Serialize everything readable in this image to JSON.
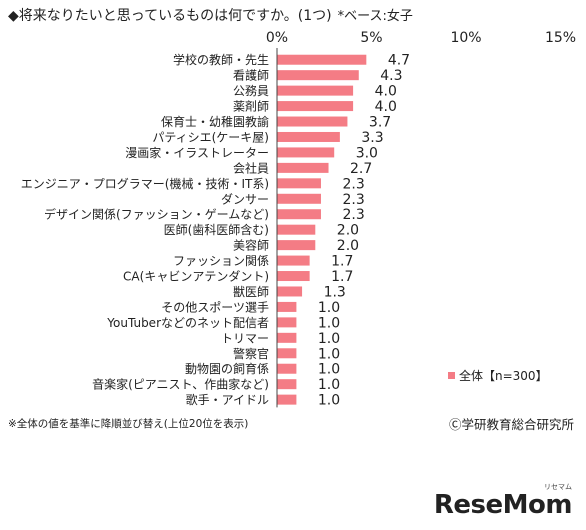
{
  "title": {
    "main": "◆将来なりたいと思っているものは何ですか。(1つ)",
    "base": "*ベース:女子"
  },
  "chart_data": {
    "type": "bar",
    "orientation": "horizontal",
    "x_ticks": [
      "0%",
      "5%",
      "10%",
      "15%"
    ],
    "xlim": [
      0,
      15
    ],
    "grid": false,
    "legend_position": "bottom-right",
    "categories": [
      "学校の教師・先生",
      "看護師",
      "公務員",
      "薬剤師",
      "保育士・幼稚園教諭",
      "パティシエ(ケーキ屋)",
      "漫画家・イラストレーター",
      "会社員",
      "エンジニア・プログラマー(機械・技術・IT系)",
      "ダンサー",
      "デザイン関係(ファッション・ゲームなど)",
      "医師(歯科医師含む)",
      "美容師",
      "ファッション関係",
      "CA(キャビンアテンダント)",
      "獣医師",
      "その他スポーツ選手",
      "YouTuberなどのネット配信者",
      "トリマー",
      "警察官",
      "動物園の飼育係",
      "音楽家(ピアニスト、作曲家など)",
      "歌手・アイドル"
    ],
    "series": [
      {
        "name": "全体【n=300】",
        "color": "#f47c85",
        "values": [
          4.7,
          4.3,
          4.0,
          4.0,
          3.7,
          3.3,
          3.0,
          2.7,
          2.3,
          2.3,
          2.3,
          2.0,
          2.0,
          1.7,
          1.7,
          1.3,
          1.0,
          1.0,
          1.0,
          1.0,
          1.0,
          1.0,
          1.0
        ],
        "labels": [
          "4.7",
          "4.3",
          "4.0",
          "4.0",
          "3.7",
          "3.3",
          "3.0",
          "2.7",
          "2.3",
          "2.3",
          "2.3",
          "2.0",
          "2.0",
          "1.7",
          "1.7",
          "1.3",
          "1.0",
          "1.0",
          "1.0",
          "1.0",
          "1.0",
          "1.0",
          "1.0"
        ]
      }
    ]
  },
  "footer": {
    "note": "※全体の値を基準に降順並び替え(上位20位を表示)",
    "copyright": "Ⓒ学研教育総合研究所"
  },
  "watermark": {
    "logo_text": "ReseMom",
    "ruby": "リセマム"
  }
}
